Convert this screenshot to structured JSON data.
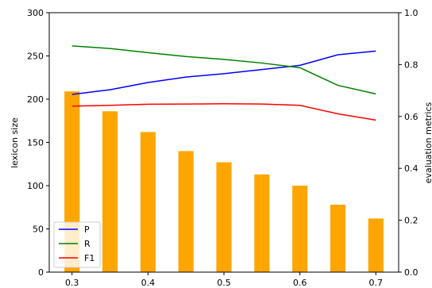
{
  "chart_data": {
    "type": "bar+line",
    "x": [
      0.3,
      0.35,
      0.4,
      0.45,
      0.5,
      0.55,
      0.6,
      0.65,
      0.7
    ],
    "bars": {
      "axis": "left",
      "color": "#ffa500",
      "values": [
        209,
        186,
        162,
        140,
        127,
        113,
        100,
        78,
        62
      ]
    },
    "series": [
      {
        "name": "P",
        "axis": "right",
        "color": "#0000ff",
        "values": [
          0.685,
          0.703,
          0.731,
          0.752,
          0.765,
          0.781,
          0.797,
          0.838,
          0.852
        ]
      },
      {
        "name": "R",
        "axis": "right",
        "color": "#008000",
        "values": [
          0.872,
          0.862,
          0.846,
          0.831,
          0.82,
          0.806,
          0.788,
          0.72,
          0.687
        ]
      },
      {
        "name": "F1",
        "axis": "right",
        "color": "#ff0000",
        "values": [
          0.64,
          0.643,
          0.647,
          0.648,
          0.649,
          0.648,
          0.643,
          0.61,
          0.586
        ]
      }
    ],
    "xlim": [
      0.27,
      0.73
    ],
    "ylim_left": [
      0,
      300
    ],
    "ylim_right": [
      0,
      1.0
    ],
    "xticks": [
      "0.3",
      "0.4",
      "0.5",
      "0.6",
      "0.7"
    ],
    "xtick_values": [
      0.3,
      0.4,
      0.5,
      0.6,
      0.7
    ],
    "yticks_left": [
      "0",
      "50",
      "100",
      "150",
      "200",
      "250",
      "300"
    ],
    "ytick_values_left": [
      0,
      50,
      100,
      150,
      200,
      250,
      300
    ],
    "yticks_right": [
      "0.0",
      "0.2",
      "0.4",
      "0.6",
      "0.8",
      "1.0"
    ],
    "ytick_values_right": [
      0,
      0.2,
      0.4,
      0.6,
      0.8,
      1.0
    ],
    "ylabel_left": "lexicon size",
    "ylabel_right": "evaluation metrics",
    "xlabel": "",
    "title": "",
    "legend": {
      "placement": "lower-left",
      "entries": [
        "P",
        "R",
        "F1"
      ]
    },
    "grid": false
  }
}
